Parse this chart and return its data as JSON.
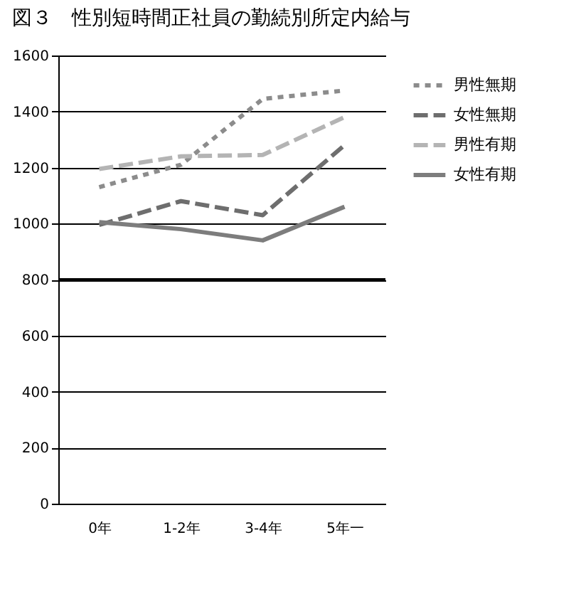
{
  "chart_data": {
    "type": "line",
    "title": "図３　性別短時間正社員の勤続別所定内給与",
    "categories": [
      "0年",
      "1-2年",
      "3-4年",
      "5年一"
    ],
    "series": [
      {
        "name": "男性無期",
        "color": "#8c8c8c",
        "line_style": "dotted",
        "values": [
          1130,
          1210,
          1445,
          1475
        ]
      },
      {
        "name": "女性無期",
        "color": "#6e6e6e",
        "line_style": "dashed",
        "values": [
          995,
          1080,
          1030,
          1280
        ]
      },
      {
        "name": "男性有期",
        "color": "#b4b4b4",
        "line_style": "dashed",
        "values": [
          1195,
          1240,
          1245,
          1380
        ]
      },
      {
        "name": "女性有期",
        "color": "#7d7d7d",
        "line_style": "solid",
        "values": [
          1005,
          980,
          940,
          1060
        ]
      }
    ],
    "ylim": [
      0,
      1600
    ],
    "yticks": [
      0,
      200,
      400,
      600,
      800,
      1000,
      1200,
      1400,
      1600
    ],
    "grid": "y",
    "legend": "right",
    "marker": "none",
    "ref_lines": [
      {
        "axis": "y",
        "value": 800,
        "color": "#000000"
      }
    ]
  }
}
